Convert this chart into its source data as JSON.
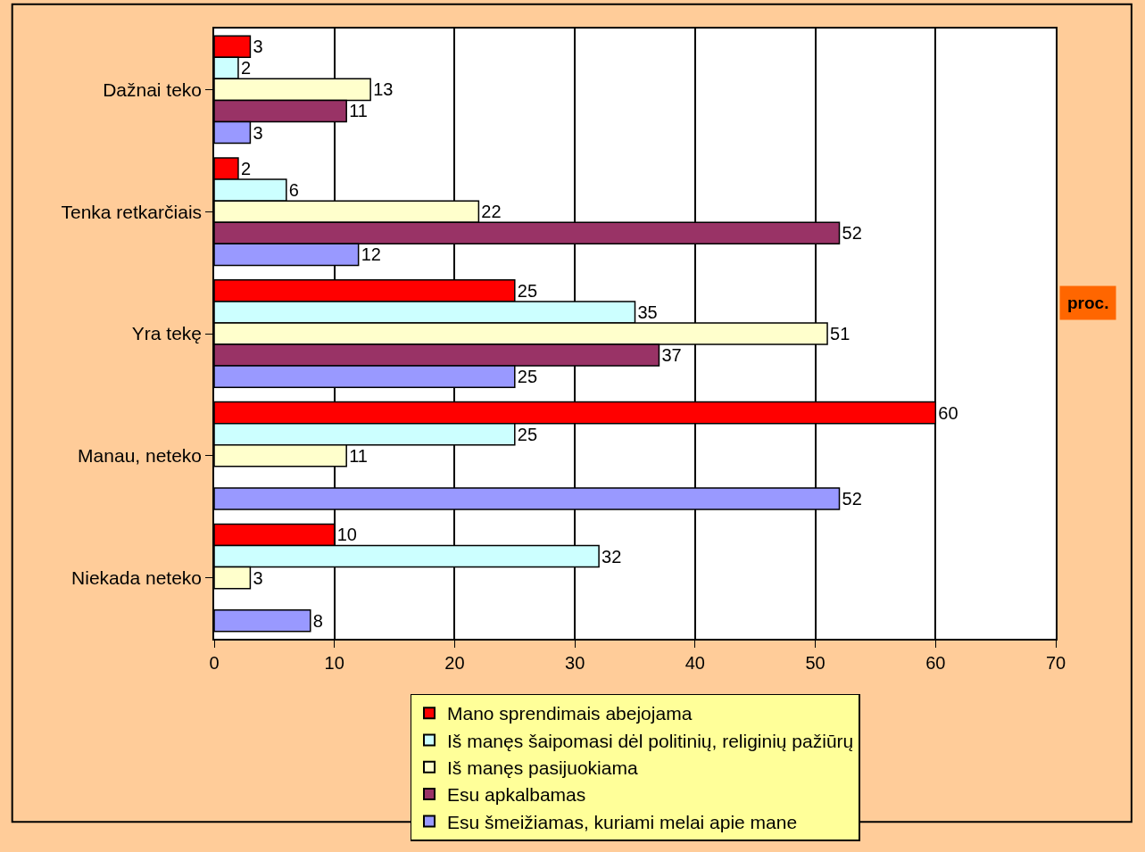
{
  "chart_data": {
    "type": "bar",
    "orientation": "horizontal",
    "categories": [
      "Dažnai teko",
      "Tenka retkarčiais",
      "Yra tekę",
      "Manau, neteko",
      "Niekada neteko"
    ],
    "series": [
      {
        "name": "Mano sprendimais abejojama",
        "color": "#ff0000",
        "values": [
          3,
          2,
          25,
          60,
          10
        ]
      },
      {
        "name": "Iš manęs šaipomasi dėl politinių, religinių pažiūrų",
        "color": "#ccffff",
        "values": [
          2,
          6,
          35,
          25,
          32
        ]
      },
      {
        "name": "Iš manęs pasijuokiama",
        "color": "#ffffcc",
        "values": [
          13,
          22,
          51,
          11,
          3
        ]
      },
      {
        "name": "Esu apkalbamas",
        "color": "#993366",
        "values": [
          11,
          52,
          37,
          null,
          null
        ]
      },
      {
        "name": "Esu šmeižiamas, kuriami melai apie mane",
        "color": "#9999ff",
        "values": [
          3,
          12,
          25,
          52,
          8
        ]
      }
    ],
    "xlabel": "proc.",
    "xlim": [
      0,
      70
    ],
    "xticks": [
      0,
      10,
      20,
      30,
      40,
      50,
      60,
      70
    ],
    "grid": "x",
    "legend": "bottom",
    "data_labels": true
  }
}
